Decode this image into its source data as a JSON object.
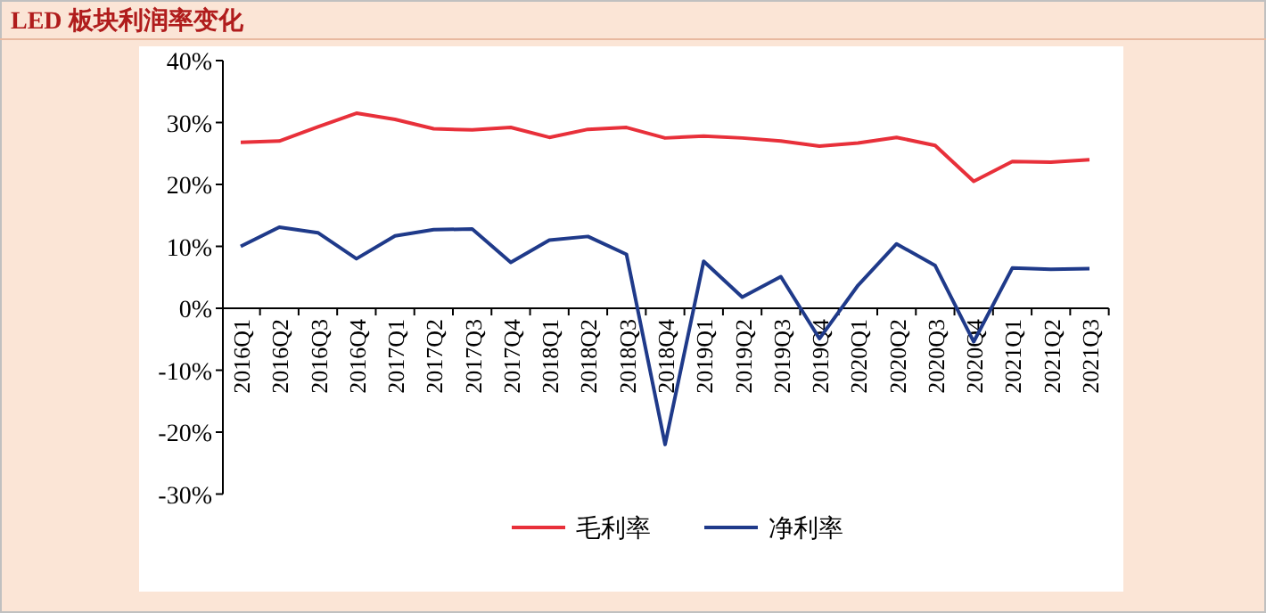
{
  "chart_data": {
    "type": "line",
    "title": "LED 板块利润率变化",
    "categories": [
      "2016Q1",
      "2016Q2",
      "2016Q3",
      "2016Q4",
      "2017Q1",
      "2017Q2",
      "2017Q3",
      "2017Q4",
      "2018Q1",
      "2018Q2",
      "2018Q3",
      "2018Q4",
      "2019Q1",
      "2019Q2",
      "2019Q3",
      "2019Q4",
      "2020Q1",
      "2020Q2",
      "2020Q3",
      "2020Q4",
      "2021Q1",
      "2021Q2",
      "2021Q3"
    ],
    "series": [
      {
        "name": "毛利率",
        "color": "#e8303a",
        "values": [
          26.8,
          27,
          29.3,
          31.5,
          30.5,
          29,
          28.8,
          29.2,
          27.6,
          28.9,
          29.2,
          27.5,
          27.8,
          27.5,
          27,
          26.2,
          26.7,
          27.6,
          26.3,
          20.5,
          23.7,
          23.6,
          24
        ]
      },
      {
        "name": "净利率",
        "color": "#1f3a8a",
        "values": [
          10,
          13.1,
          12.2,
          8,
          11.7,
          12.7,
          12.8,
          7.4,
          11,
          11.6,
          8.7,
          -22,
          7.6,
          1.8,
          5.1,
          -4.9,
          3.7,
          10.4,
          6.9,
          -5.4,
          6.5,
          6.3,
          6.4
        ]
      }
    ],
    "ylim": [
      -30,
      40
    ],
    "yticks": [
      {
        "value": -30,
        "label": "-30%"
      },
      {
        "value": -20,
        "label": "-20%"
      },
      {
        "value": -10,
        "label": "-10%"
      },
      {
        "value": 0,
        "label": "0%"
      },
      {
        "value": 10,
        "label": "10%"
      },
      {
        "value": 20,
        "label": "20%"
      },
      {
        "value": 30,
        "label": "30%"
      },
      {
        "value": 40,
        "label": "40%"
      }
    ],
    "grid": false,
    "legend": "bottom",
    "marker": "none",
    "line_style": "solid"
  }
}
